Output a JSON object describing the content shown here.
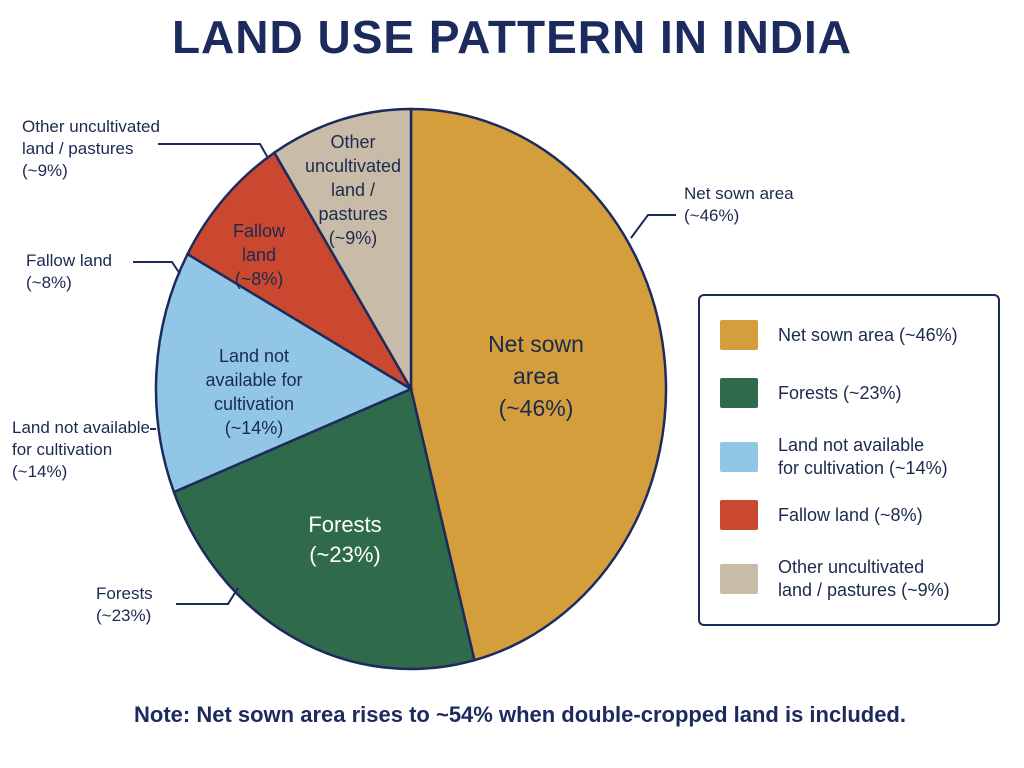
{
  "title": "LAND USE PATTERN IN INDIA",
  "note": "Note: Net sown area rises to ~54% when double-cropped land is included.",
  "colors": {
    "net_sown": "#d49e3c",
    "forests": "#2f6b4b",
    "not_available": "#92c6e6",
    "fallow": "#c9482f",
    "other": "#c8bca9",
    "outline": "#1c2a5e"
  },
  "chart_data": {
    "type": "pie",
    "title": "LAND USE PATTERN IN INDIA",
    "slices": [
      {
        "key": "net_sown",
        "label": "Net sown area",
        "value": 46,
        "inside_lines": [
          "Net sown",
          "area",
          "(~46%)"
        ],
        "outer_lines": [
          "Net sown area",
          "(~46%)"
        ],
        "legend_lines": [
          "Net sown area (~46%)"
        ]
      },
      {
        "key": "forests",
        "label": "Forests",
        "value": 23,
        "inside_lines": [
          "Forests",
          "(~23%)"
        ],
        "outer_lines": [
          "Forests",
          "(~23%)"
        ],
        "legend_lines": [
          "Forests (~23%)"
        ]
      },
      {
        "key": "not_available",
        "label": "Land not available for cultivation",
        "value": 14,
        "inside_lines": [
          "Land not",
          "available for",
          "cultivation",
          "(~14%)"
        ],
        "outer_lines": [
          "Land not available",
          "for cultivation",
          "(~14%)"
        ],
        "legend_lines": [
          "Land not available",
          "for cultivation (~14%)"
        ]
      },
      {
        "key": "fallow",
        "label": "Fallow land",
        "value": 8,
        "inside_lines": [
          "Fallow",
          "land",
          "(~8%)"
        ],
        "outer_lines": [
          "Fallow land",
          "(~8%)"
        ],
        "legend_lines": [
          "Fallow land (~8%)"
        ]
      },
      {
        "key": "other",
        "label": "Other uncultivated land / pastures",
        "value": 9,
        "inside_lines": [
          "Other",
          "uncultivated",
          "land /",
          "pastures",
          "(~9%)"
        ],
        "outer_lines": [
          "Other uncultivated",
          "land / pastures",
          "(~9%)"
        ],
        "legend_lines": [
          "Other uncultivated",
          "land / pastures (~9%)"
        ]
      }
    ]
  }
}
